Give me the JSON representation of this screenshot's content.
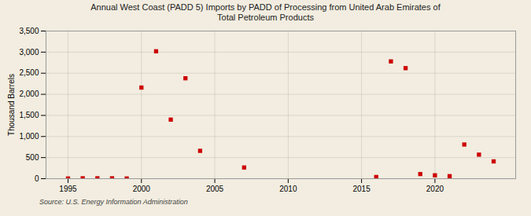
{
  "chart_data": {
    "type": "scatter",
    "title": "Annual West Coast (PADD 5) Imports by PADD of Processing from United Arab Emirates of\nTotal Petroleum Products",
    "ylabel": "Thousand Barrels",
    "source": "Source: U.S. Energy Information Administration",
    "x": [
      1995,
      1996,
      1997,
      1998,
      1999,
      2000,
      2001,
      2002,
      2003,
      2004,
      2007,
      2016,
      2017,
      2018,
      2019,
      2020,
      2021,
      2022,
      2023,
      2024
    ],
    "values": [
      5,
      10,
      10,
      10,
      5,
      2160,
      3020,
      1400,
      2380,
      660,
      265,
      40,
      2780,
      2620,
      110,
      80,
      60,
      810,
      570,
      410
    ],
    "color": "#cc0000",
    "marker": "square",
    "xlim": [
      1993.5,
      2025.5
    ],
    "xticks": [
      1995,
      2000,
      2005,
      2010,
      2015,
      2020
    ],
    "ylim": [
      0,
      3500
    ],
    "yticks": [
      0,
      500,
      {
        "value": 1000,
        "label": "1,000"
      },
      {
        "value": 1500,
        "label": "1,500"
      },
      {
        "value": 2000,
        "label": "2,000"
      },
      {
        "value": 2500,
        "label": "2,500"
      },
      {
        "value": 3000,
        "label": "3,000"
      },
      {
        "value": 3500,
        "label": "3,500"
      }
    ],
    "grid": true
  }
}
